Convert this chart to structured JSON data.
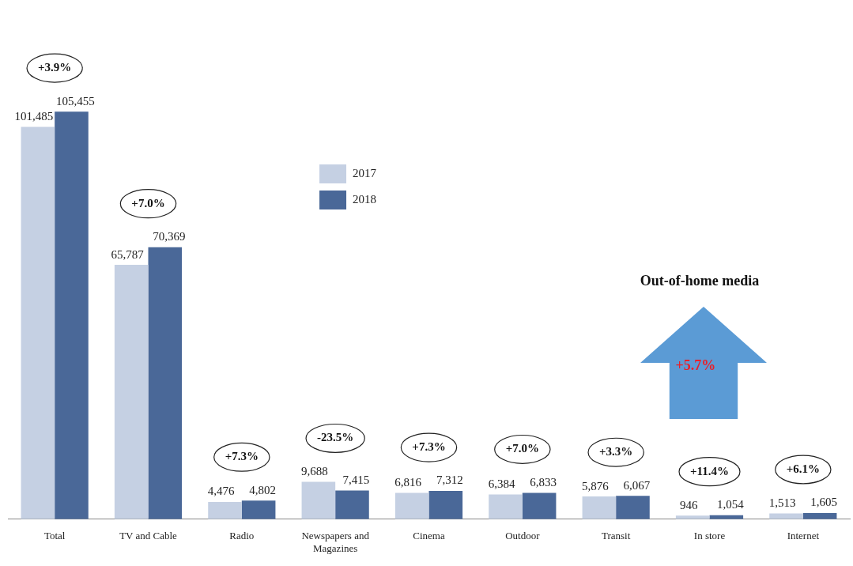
{
  "chart_data": {
    "type": "bar",
    "categories": [
      "Total",
      "TV and Cable",
      "Radio",
      "Newspapers and Magazines",
      "Cinema",
      "Outdoor",
      "Transit",
      "In store",
      "Internet"
    ],
    "series": [
      {
        "name": "2017",
        "color": "#c5d0e3",
        "values": [
          101485,
          65787,
          4476,
          9688,
          6816,
          6384,
          5876,
          946,
          1513
        ],
        "value_labels": [
          "101,485",
          "65,787",
          "4,476",
          "9,688",
          "6,816",
          "6,384",
          "5,876",
          "946",
          "1,513"
        ]
      },
      {
        "name": "2018",
        "color": "#4a6898",
        "values": [
          105455,
          70369,
          4802,
          7415,
          7312,
          6833,
          6067,
          1054,
          1605
        ],
        "value_labels": [
          "105,455",
          "70,369",
          "4,802",
          "7,415",
          "7,312",
          "6,833",
          "6,067",
          "1,054",
          "1,605"
        ]
      }
    ],
    "grid": false,
    "legend": "top",
    "tick_labels": "x",
    "annotations": [
      "+3.9%",
      "+7.0%",
      "+7.3%",
      "-23.5%",
      "+7.3%",
      "+7.0%",
      "+3.3%",
      "+11.4%",
      "+6.1%",
      "Out-of-home media",
      "+5.7%"
    ]
  }
}
